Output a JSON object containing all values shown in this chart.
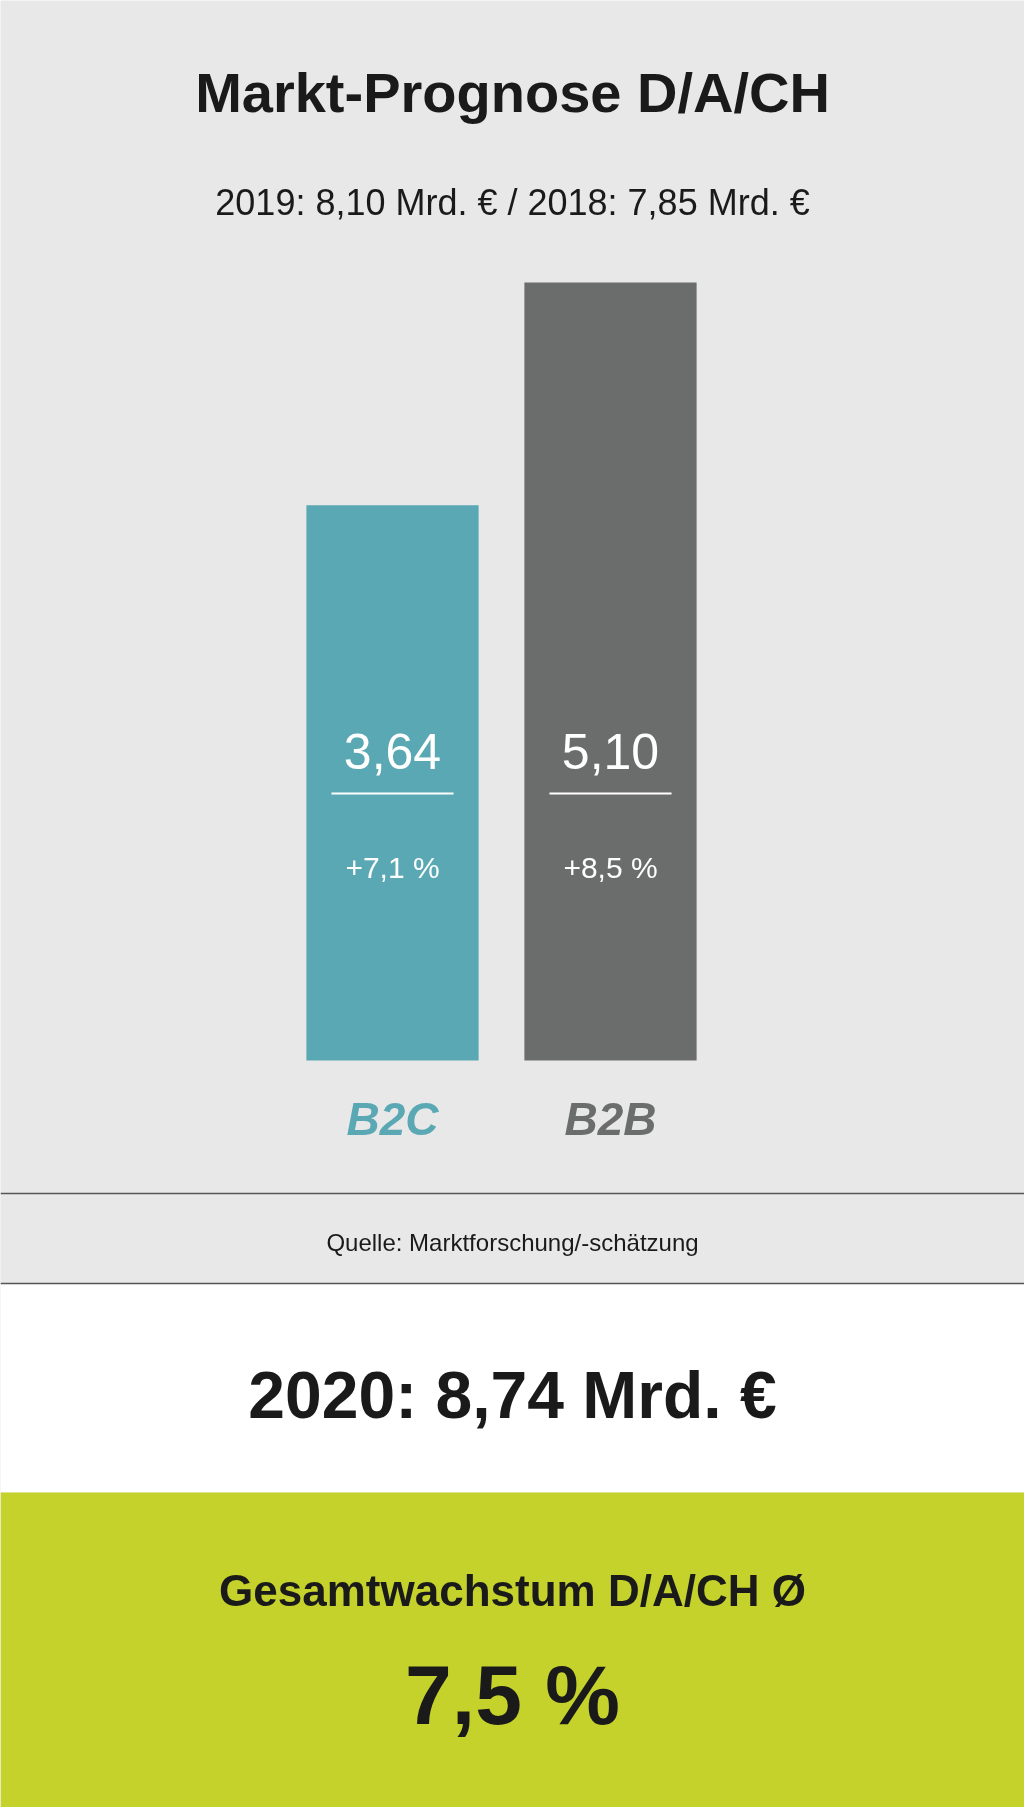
{
  "chart_data": {
    "type": "bar",
    "title": "Markt-Prognose D/A/CH",
    "subtitle": "2019: 8,10 Mrd. € / 2018: 7,85 Mrd. €",
    "categories": [
      "B2C",
      "B2B"
    ],
    "values": [
      3.64,
      5.1
    ],
    "colors": [
      "#5aa8b3",
      "#6a6d6b"
    ],
    "value_labels": [
      "3,64",
      "5,10"
    ],
    "annotations": [
      "+7,1 %",
      "+8,5 %",
      "Quelle: Marktforschung/-schätzung",
      "2020: 8,74 Mrd. €",
      "Gesamtwachstum D/A/CH Ø",
      "7,5 %"
    ]
  }
}
